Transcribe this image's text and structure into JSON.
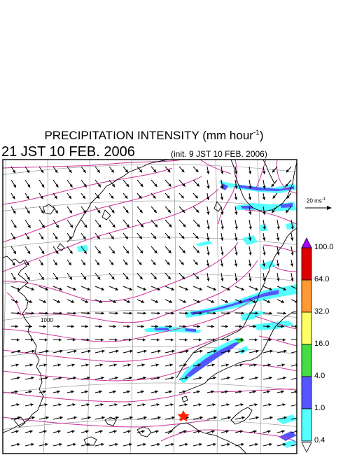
{
  "header": {
    "title_main": "PRECIPITATION INTENSITY (mm hour",
    "title_exp": "-1",
    "title_end": ")",
    "subtitle": "21 JST 10 FEB. 2006",
    "init": "(init. 9 JST 10 FEB. 2006)"
  },
  "reference_vector": {
    "label_main": "20 ms",
    "label_exp": "-1"
  },
  "isobar_label": "1000",
  "colorbar": {
    "labels": [
      "100.0",
      "64.0",
      "32.0",
      "16.0",
      "4.0",
      "1.0",
      "0.4"
    ],
    "colors": [
      "#dd0000",
      "#ff9933",
      "#ffff66",
      "#44dd44",
      "#5555ff",
      "#55ffff"
    ],
    "top_arrow_color": "#aa00ff"
  },
  "colors": {
    "isobar": "#cc3399",
    "coast": "#000000",
    "grid": "#999999"
  },
  "marker": {
    "name": "red-star",
    "color": "#ff2200"
  }
}
